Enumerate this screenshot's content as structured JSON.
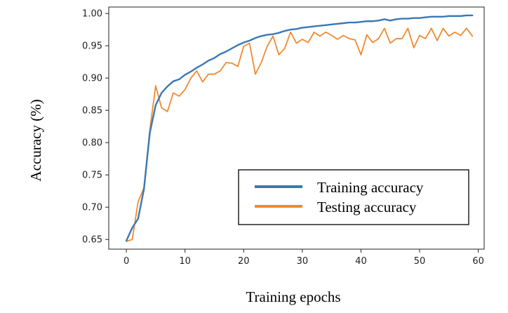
{
  "chart_data": {
    "type": "line",
    "title": "",
    "xlabel": "Training epochs",
    "ylabel": "Accuracy (%)",
    "xlim": [
      -3,
      61
    ],
    "ylim": [
      0.635,
      1.01
    ],
    "x_ticks": [
      0,
      10,
      20,
      30,
      40,
      50,
      60
    ],
    "y_ticks": [
      0.65,
      0.7,
      0.75,
      0.8,
      0.85,
      0.9,
      0.95,
      1.0
    ],
    "grid": false,
    "legend_position": "lower-right",
    "x": [
      0,
      1,
      2,
      3,
      4,
      5,
      6,
      7,
      8,
      9,
      10,
      11,
      12,
      13,
      14,
      15,
      16,
      17,
      18,
      19,
      20,
      21,
      22,
      23,
      24,
      25,
      26,
      27,
      28,
      29,
      30,
      31,
      32,
      33,
      34,
      35,
      36,
      37,
      38,
      39,
      40,
      41,
      42,
      43,
      44,
      45,
      46,
      47,
      48,
      49,
      50,
      51,
      52,
      53,
      54,
      55,
      56,
      57,
      58,
      59
    ],
    "series": [
      {
        "name": "Training accuracy",
        "color": "#3a78b5",
        "values": [
          0.648,
          0.668,
          0.682,
          0.728,
          0.815,
          0.858,
          0.877,
          0.887,
          0.895,
          0.898,
          0.905,
          0.91,
          0.916,
          0.921,
          0.927,
          0.931,
          0.937,
          0.941,
          0.946,
          0.951,
          0.955,
          0.958,
          0.962,
          0.965,
          0.967,
          0.968,
          0.97,
          0.973,
          0.975,
          0.976,
          0.978,
          0.979,
          0.98,
          0.981,
          0.982,
          0.983,
          0.984,
          0.985,
          0.986,
          0.986,
          0.987,
          0.988,
          0.988,
          0.989,
          0.991,
          0.989,
          0.991,
          0.992,
          0.992,
          0.993,
          0.993,
          0.994,
          0.995,
          0.995,
          0.995,
          0.996,
          0.996,
          0.996,
          0.997,
          0.997
        ]
      },
      {
        "name": "Testing accuracy",
        "color": "#f08a2e",
        "values": [
          0.647,
          0.65,
          0.708,
          0.73,
          0.82,
          0.888,
          0.854,
          0.848,
          0.877,
          0.872,
          0.882,
          0.9,
          0.911,
          0.894,
          0.906,
          0.906,
          0.911,
          0.924,
          0.923,
          0.918,
          0.949,
          0.954,
          0.906,
          0.924,
          0.949,
          0.965,
          0.936,
          0.946,
          0.971,
          0.954,
          0.96,
          0.955,
          0.971,
          0.965,
          0.971,
          0.966,
          0.96,
          0.966,
          0.961,
          0.959,
          0.936,
          0.967,
          0.955,
          0.961,
          0.977,
          0.954,
          0.961,
          0.961,
          0.977,
          0.947,
          0.966,
          0.961,
          0.977,
          0.958,
          0.977,
          0.965,
          0.971,
          0.966,
          0.977,
          0.965
        ]
      }
    ]
  }
}
